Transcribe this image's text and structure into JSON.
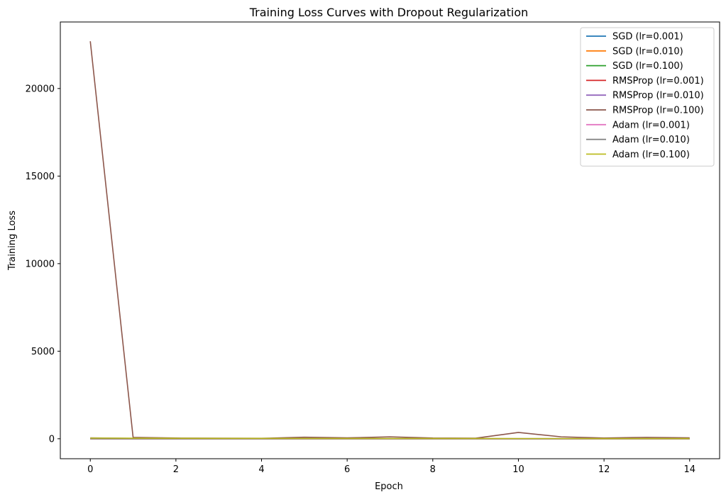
{
  "chart_data": {
    "type": "line",
    "title": "Training Loss Curves with Dropout Regularization",
    "xlabel": "Epoch",
    "ylabel": "Training Loss",
    "xlim": [
      -0.7,
      14.7
    ],
    "ylim": [
      -1140,
      23800
    ],
    "xticks": [
      0,
      2,
      4,
      6,
      8,
      10,
      12,
      14
    ],
    "yticks": [
      0,
      5000,
      10000,
      15000,
      20000
    ],
    "grid": false,
    "legend_position": "top-right",
    "x": [
      0,
      1,
      2,
      3,
      4,
      5,
      6,
      7,
      8,
      9,
      10,
      11,
      12,
      13,
      14
    ],
    "series": [
      {
        "name": "SGD (lr=0.001)",
        "color": "#1f77b4",
        "values": [
          2.3,
          2.3,
          2.3,
          2.3,
          2.3,
          2.3,
          2.3,
          2.3,
          2.3,
          2.3,
          2.3,
          2.3,
          2.3,
          2.3,
          2.3
        ]
      },
      {
        "name": "SGD (lr=0.010)",
        "color": "#ff7f0e",
        "values": [
          2.3,
          2.2,
          2.1,
          2.0,
          1.9,
          1.8,
          1.7,
          1.6,
          1.5,
          1.4,
          1.3,
          1.2,
          1.1,
          1.0,
          0.9
        ]
      },
      {
        "name": "SGD (lr=0.100)",
        "color": "#2ca02c",
        "values": [
          2.0,
          1.5,
          1.2,
          1.0,
          0.9,
          0.8,
          0.7,
          0.7,
          0.6,
          0.6,
          0.5,
          0.5,
          0.5,
          0.4,
          0.4
        ]
      },
      {
        "name": "RMSProp (lr=0.001)",
        "color": "#d62728",
        "values": [
          2.2,
          1.8,
          1.5,
          1.3,
          1.1,
          1.0,
          0.9,
          0.8,
          0.7,
          0.7,
          0.6,
          0.6,
          0.5,
          0.5,
          0.5
        ]
      },
      {
        "name": "RMSProp (lr=0.010)",
        "color": "#9467bd",
        "values": [
          50,
          20,
          15,
          12,
          10,
          9,
          8,
          8,
          7,
          7,
          6,
          6,
          6,
          5,
          5
        ]
      },
      {
        "name": "RMSProp (lr=0.100)",
        "color": "#8c564b",
        "values": [
          22700,
          80,
          40,
          30,
          25,
          90,
          50,
          110,
          40,
          30,
          360,
          110,
          40,
          80,
          50
        ]
      },
      {
        "name": "Adam (lr=0.001)",
        "color": "#e377c2",
        "values": [
          2.1,
          1.6,
          1.3,
          1.1,
          1.0,
          0.9,
          0.8,
          0.7,
          0.7,
          0.6,
          0.6,
          0.5,
          0.5,
          0.5,
          0.4
        ]
      },
      {
        "name": "Adam (lr=0.010)",
        "color": "#7f7f7f",
        "values": [
          5,
          3,
          2.5,
          2.2,
          2.0,
          1.9,
          1.8,
          1.7,
          1.6,
          1.5,
          1.5,
          1.4,
          1.4,
          1.3,
          1.3
        ]
      },
      {
        "name": "Adam (lr=0.100)",
        "color": "#bcbd22",
        "values": [
          40,
          30,
          25,
          22,
          20,
          18,
          17,
          16,
          15,
          15,
          14,
          14,
          13,
          13,
          12
        ]
      }
    ]
  }
}
